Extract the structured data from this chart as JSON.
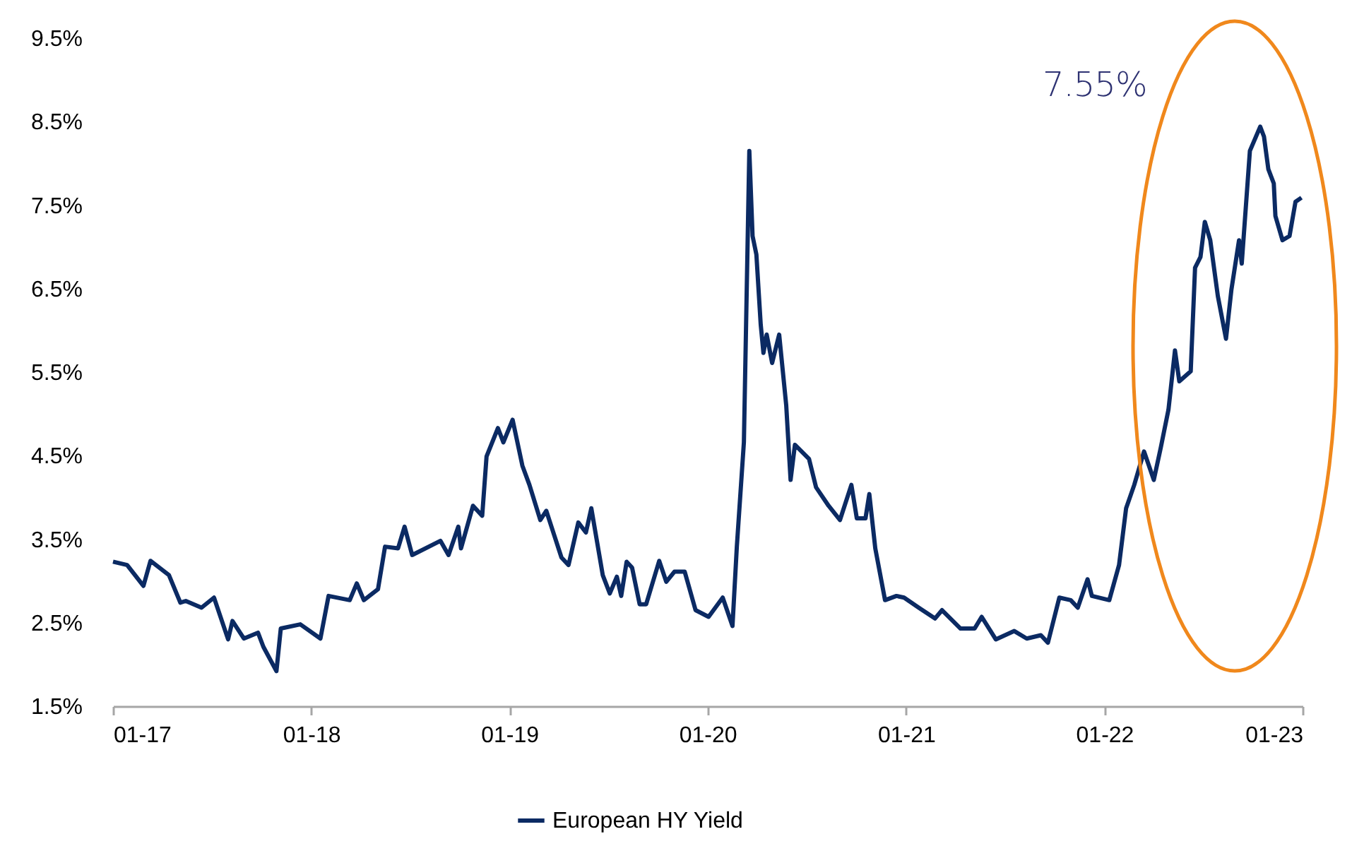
{
  "chart_data": {
    "type": "line",
    "x": [
      "2017-01-01",
      "2017-01-27",
      "2017-02-26",
      "2017-03-11",
      "2017-04-14",
      "2017-05-05",
      "2017-05-15",
      "2017-06-13",
      "2017-07-06",
      "2017-08-01",
      "2017-08-09",
      "2017-08-30",
      "2017-09-25",
      "2017-10-05",
      "2017-10-29",
      "2017-11-06",
      "2017-12-12",
      "2018-01-18",
      "2018-02-02",
      "2018-03-13",
      "2018-03-26",
      "2018-04-08",
      "2018-05-04",
      "2018-05-17",
      "2018-06-10",
      "2018-06-22",
      "2018-07-06",
      "2018-08-27",
      "2018-09-11",
      "2018-09-29",
      "2018-10-04",
      "2018-10-26",
      "2018-11-12",
      "2018-11-20",
      "2018-12-11",
      "2018-12-21",
      "2019-01-07",
      "2019-01-25",
      "2019-02-07",
      "2019-02-27",
      "2019-03-10",
      "2019-04-07",
      "2019-04-20",
      "2019-05-08",
      "2019-05-22",
      "2019-06-01",
      "2019-06-22",
      "2019-07-05",
      "2019-07-18",
      "2019-07-26",
      "2019-08-05",
      "2019-08-15",
      "2019-08-29",
      "2019-09-10",
      "2019-10-04",
      "2019-10-17",
      "2019-11-01",
      "2019-11-20",
      "2019-12-10",
      "2020-01-03",
      "2020-01-29",
      "2020-02-16",
      "2020-02-24",
      "2020-03-08",
      "2020-03-18",
      "2020-03-24",
      "2020-03-31",
      "2020-04-08",
      "2020-04-13",
      "2020-04-19",
      "2020-04-29",
      "2020-05-12",
      "2020-05-25",
      "2020-06-02",
      "2020-06-10",
      "2020-07-06",
      "2020-07-19",
      "2020-08-11",
      "2020-09-01",
      "2020-09-22",
      "2020-10-02",
      "2020-10-18",
      "2020-10-25",
      "2020-11-05",
      "2020-11-23",
      "2020-12-14",
      "2020-12-28",
      "2021-01-24",
      "2021-02-23",
      "2021-03-08",
      "2021-04-11",
      "2021-05-07",
      "2021-05-20",
      "2021-06-15",
      "2021-07-19",
      "2021-08-11",
      "2021-09-06",
      "2021-09-19",
      "2021-10-10",
      "2021-10-31",
      "2021-11-13",
      "2021-12-01",
      "2021-12-09",
      "2022-01-10",
      "2022-01-28",
      "2022-02-10",
      "2022-02-25",
      "2022-03-15",
      "2022-04-02",
      "2022-04-15",
      "2022-04-29",
      "2022-05-11",
      "2022-05-19",
      "2022-06-09",
      "2022-06-17",
      "2022-06-27",
      "2022-07-05",
      "2022-07-15",
      "2022-07-29",
      "2022-08-13",
      "2022-08-23",
      "2022-09-06",
      "2022-09-11",
      "2022-09-26",
      "2022-10-15",
      "2022-10-22",
      "2022-10-30",
      "2022-11-09",
      "2022-11-12",
      "2022-11-25",
      "2022-12-08",
      "2022-12-19",
      "2022-12-30"
    ],
    "series": [
      {
        "name": "European HY Yield",
        "color": "#0b2a63",
        "values": [
          3.23,
          3.19,
          2.94,
          3.24,
          3.07,
          2.74,
          2.76,
          2.68,
          2.8,
          2.3,
          2.52,
          2.31,
          2.38,
          2.21,
          1.92,
          2.43,
          2.48,
          2.31,
          2.82,
          2.77,
          2.97,
          2.77,
          2.9,
          3.41,
          3.39,
          3.65,
          3.31,
          3.48,
          3.31,
          3.65,
          3.39,
          3.9,
          3.78,
          4.49,
          4.83,
          4.66,
          4.93,
          4.38,
          4.15,
          3.73,
          3.84,
          3.28,
          3.19,
          3.7,
          3.58,
          3.87,
          3.07,
          2.85,
          3.05,
          2.82,
          3.23,
          3.16,
          2.72,
          2.72,
          3.24,
          2.99,
          3.11,
          3.11,
          2.65,
          2.57,
          2.8,
          2.46,
          3.41,
          4.66,
          8.15,
          7.13,
          6.91,
          6.07,
          5.73,
          5.95,
          5.61,
          5.95,
          5.1,
          4.21,
          4.63,
          4.46,
          4.12,
          3.9,
          3.73,
          4.15,
          3.75,
          3.75,
          4.04,
          3.39,
          2.77,
          2.82,
          2.8,
          2.68,
          2.55,
          2.65,
          2.43,
          2.43,
          2.57,
          2.3,
          2.4,
          2.31,
          2.35,
          2.26,
          2.8,
          2.77,
          2.68,
          3.02,
          2.82,
          2.77,
          3.19,
          3.87,
          4.15,
          4.55,
          4.21,
          4.6,
          5.05,
          5.76,
          5.39,
          5.51,
          6.75,
          6.88,
          7.3,
          7.08,
          6.41,
          5.9,
          6.49,
          7.08,
          6.8,
          8.15,
          8.44,
          8.32,
          7.93,
          7.76,
          7.37,
          7.08,
          7.13,
          7.54,
          7.59
        ]
      }
    ],
    "xlim": [
      "2017-01-01",
      "2023-01-01"
    ],
    "xticks": [
      {
        "value": "2017-01-01",
        "label": "01-17"
      },
      {
        "value": "2018-01-01",
        "label": "01-18"
      },
      {
        "value": "2019-01-01",
        "label": "01-19"
      },
      {
        "value": "2020-01-01",
        "label": "01-20"
      },
      {
        "value": "2021-01-01",
        "label": "01-21"
      },
      {
        "value": "2022-01-01",
        "label": "01-22"
      },
      {
        "value": "2023-01-01",
        "label": "01-23"
      }
    ],
    "ylim": [
      1.5,
      9.5
    ],
    "yticks": [
      {
        "value": 1.5,
        "label": "1.5%"
      },
      {
        "value": 2.5,
        "label": "2.5%"
      },
      {
        "value": 3.5,
        "label": "3.5%"
      },
      {
        "value": 4.5,
        "label": "4.5%"
      },
      {
        "value": 5.5,
        "label": "5.5%"
      },
      {
        "value": 6.5,
        "label": "6.5%"
      },
      {
        "value": 7.5,
        "label": "7.5%"
      },
      {
        "value": 8.5,
        "label": "8.5%"
      },
      {
        "value": 9.5,
        "label": "9.5%"
      }
    ],
    "annotations": [
      "7.55%"
    ],
    "legend": "bottom"
  }
}
